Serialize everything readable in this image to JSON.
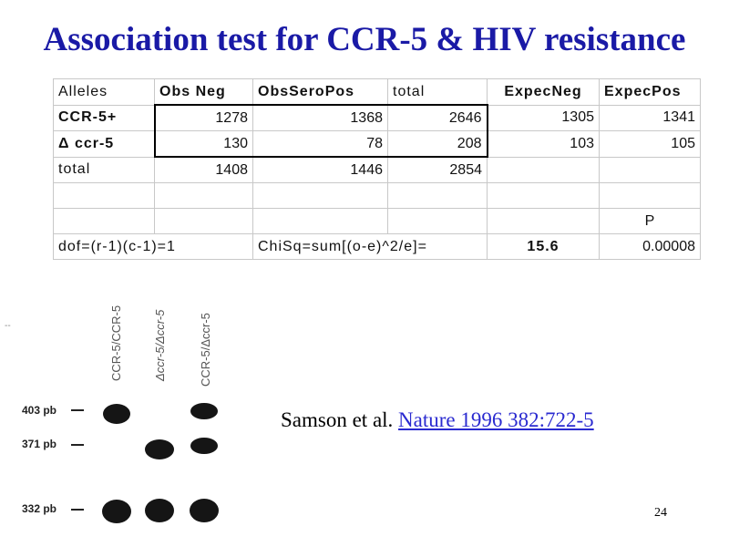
{
  "slide": {
    "title": "Association test for CCR-5 & HIV resistance",
    "page_number": "24"
  },
  "table": {
    "headers": [
      "Alleles",
      "Obs Neg",
      "ObsSeroPos",
      "total",
      "ExpecNeg",
      "ExpecPos"
    ],
    "rows": [
      [
        "CCR-5+",
        "1278",
        "1368",
        "2646",
        "1305",
        "1341"
      ],
      [
        "Δ ccr-5",
        "130",
        "78",
        "208",
        "103",
        "105"
      ],
      [
        "total",
        "1408",
        "1446",
        "2854",
        "",
        ""
      ],
      [
        "",
        "",
        "",
        "",
        "",
        ""
      ],
      [
        "",
        "",
        "",
        "",
        "",
        "P"
      ]
    ],
    "footer": {
      "dof": "dof=(r-1)(c-1)=1",
      "chisq_label": "ChiSq=sum[(o-e)^2/e]=",
      "chisq_value": "15.6",
      "p_value": "0.00008"
    }
  },
  "gel": {
    "lane_labels": [
      "CCR-5/CCR-5",
      "Δccr-5/Δccr-5",
      "CCR-5/Δccr-5"
    ],
    "band_labels": [
      "403 pb",
      "371 pb",
      "332 pb"
    ]
  },
  "citation": {
    "authors": "Samson et al.",
    "link_text": "Nature  1996 382:722-5"
  }
}
